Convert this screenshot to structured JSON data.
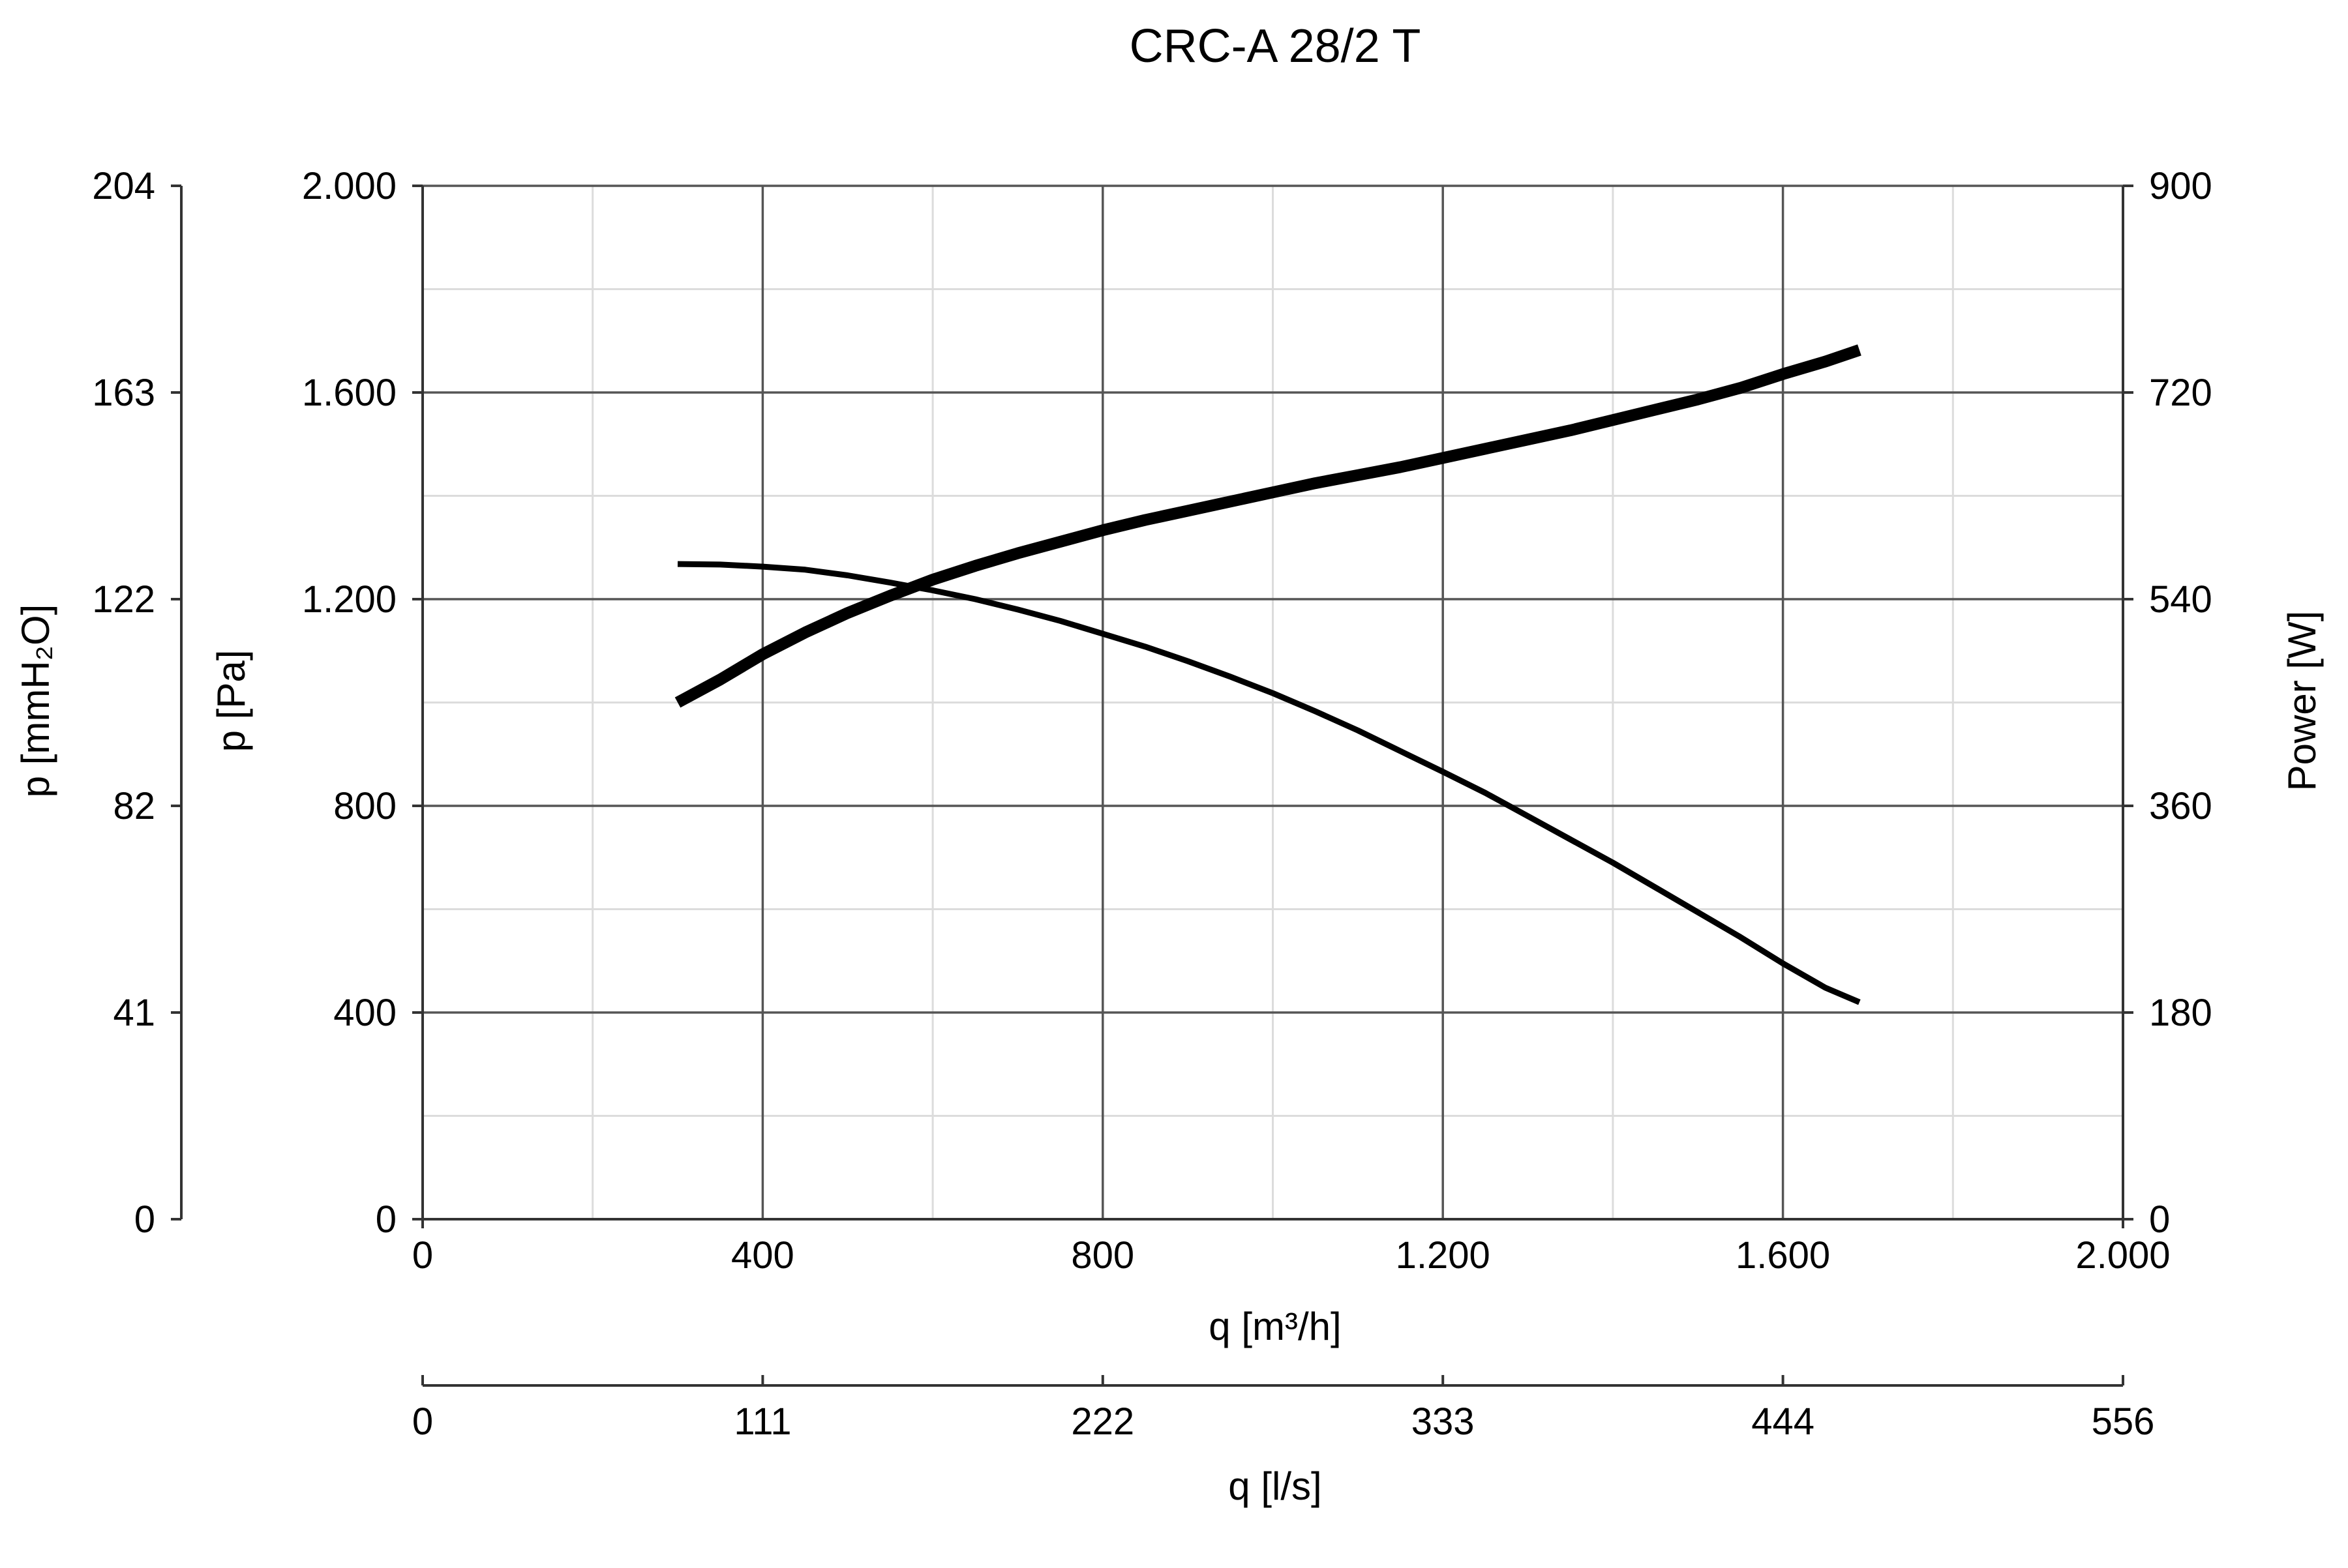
{
  "chart_data": {
    "type": "line",
    "title": "CRC-A 28/2 T",
    "x_axis": {
      "label": "q [m³/h]",
      "range": [
        0,
        2000
      ],
      "ticks": [
        0,
        400,
        800,
        1200,
        1600,
        2000
      ],
      "tick_labels": [
        "0",
        "400",
        "800",
        "1.200",
        "1.600",
        "2.000"
      ]
    },
    "x_axis_secondary": {
      "label": "q [l/s]",
      "range": [
        0,
        556
      ],
      "tick_labels": [
        "0",
        "111",
        "222",
        "333",
        "444",
        "556"
      ]
    },
    "y_axis": {
      "label": "p [Pa]",
      "range": [
        0,
        2000
      ],
      "ticks": [
        0,
        400,
        800,
        1200,
        1600,
        2000
      ],
      "tick_labels": [
        "0",
        "400",
        "800",
        "1.200",
        "1.600",
        "2.000"
      ]
    },
    "y_axis_secondary_left": {
      "label": "p [mmH₂O]",
      "range": [
        0,
        204
      ],
      "tick_labels": [
        "0",
        "41",
        "82",
        "122",
        "163",
        "204"
      ]
    },
    "y_axis_right": {
      "label": "Power [W]",
      "range": [
        0,
        900
      ],
      "ticks": [
        0,
        180,
        360,
        540,
        720,
        900
      ],
      "tick_labels": [
        "0",
        "180",
        "360",
        "540",
        "720",
        "900"
      ]
    },
    "grid": true,
    "series": [
      {
        "axis": "left",
        "color": "#000000",
        "x": [
          300,
          350,
          400,
          450,
          500,
          550,
          600,
          650,
          700,
          750,
          800,
          850,
          900,
          950,
          1000,
          1050,
          1100,
          1150,
          1200,
          1250,
          1300,
          1350,
          1400,
          1450,
          1500,
          1550,
          1600,
          1650,
          1690
        ],
        "values": [
          1268,
          1267,
          1263,
          1257,
          1246,
          1232,
          1217,
          1200,
          1180,
          1158,
          1133,
          1108,
          1080,
          1050,
          1018,
          983,
          946,
          906,
          866,
          825,
          780,
          735,
          690,
          642,
          594,
          546,
          495,
          448,
          420
        ]
      },
      {
        "axis": "right",
        "color": "#000000",
        "x": [
          300,
          350,
          400,
          450,
          500,
          550,
          600,
          650,
          700,
          750,
          800,
          850,
          900,
          950,
          1000,
          1050,
          1100,
          1150,
          1200,
          1250,
          1300,
          1350,
          1400,
          1450,
          1500,
          1550,
          1600,
          1650,
          1690
        ],
        "values": [
          450,
          470,
          492,
          511,
          528,
          543,
          557,
          569,
          580,
          590,
          600,
          609,
          617,
          625,
          633,
          641,
          648,
          655,
          663,
          671,
          679,
          687,
          696,
          705,
          714,
          724,
          736,
          747,
          757
        ]
      }
    ]
  }
}
